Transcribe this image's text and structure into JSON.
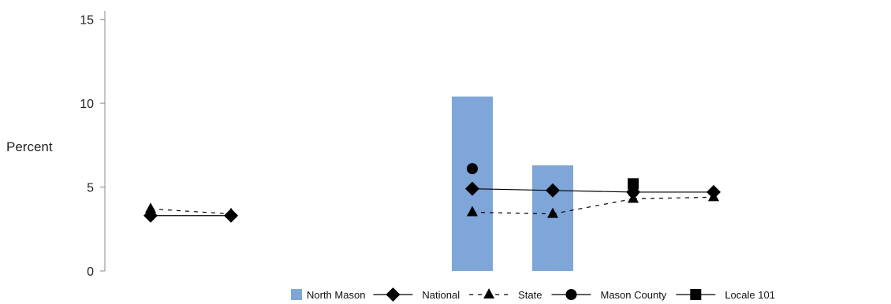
{
  "chart_data": {
    "type": "bar",
    "title": "",
    "xlabel": "",
    "ylabel": "Percent",
    "ylim": [
      0,
      15.5
    ],
    "yticks": [
      0,
      5,
      10,
      15
    ],
    "grid": false,
    "legend_position": "bottom-right",
    "categories": [
      "c1",
      "c2",
      "c3",
      "c4",
      "c5",
      "c6",
      "c7",
      "c8"
    ],
    "category_labels_visible": false,
    "series": [
      {
        "name": "North Mason",
        "kind": "bar",
        "color": "#7ea6d8",
        "values": [
          null,
          null,
          null,
          null,
          10.4,
          6.3,
          null,
          null
        ]
      },
      {
        "name": "National",
        "kind": "line",
        "marker": "diamond",
        "dash": "solid",
        "color": "#000000",
        "values": [
          3.3,
          3.3,
          null,
          null,
          4.9,
          4.8,
          4.7,
          4.7
        ]
      },
      {
        "name": "State",
        "kind": "line",
        "marker": "triangle",
        "dash": "dashed",
        "color": "#000000",
        "values": [
          3.7,
          3.4,
          null,
          null,
          3.5,
          3.4,
          4.3,
          4.4
        ]
      },
      {
        "name": "Mason County",
        "kind": "line",
        "marker": "circle",
        "dash": "solid",
        "color": "#000000",
        "values": [
          null,
          null,
          null,
          null,
          6.1,
          null,
          4.7,
          null
        ]
      },
      {
        "name": "Locale 101",
        "kind": "line",
        "marker": "square",
        "dash": "solid",
        "color": "#000000",
        "values": [
          null,
          null,
          null,
          null,
          null,
          null,
          5.2,
          null
        ]
      }
    ]
  }
}
